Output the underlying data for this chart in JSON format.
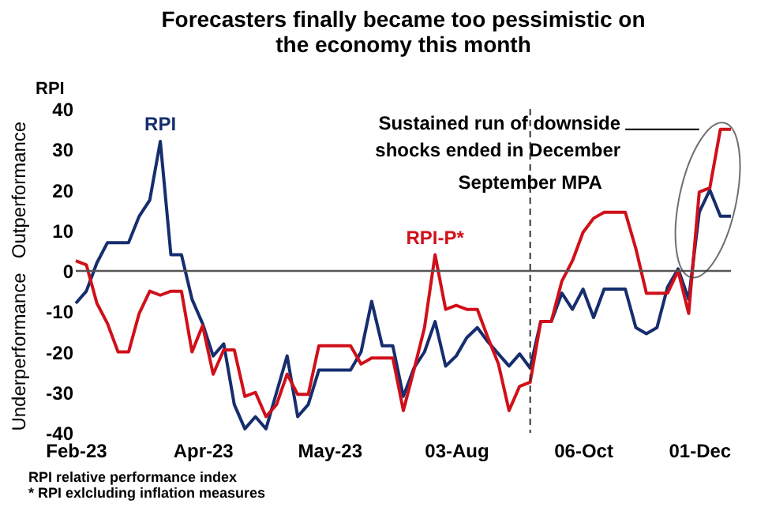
{
  "chart_data": {
    "type": "line",
    "title": "Forecasters finally became too pessimistic on the economy this month",
    "ylabel": "RPI",
    "categories": [
      "Feb-23",
      null,
      null,
      null,
      null,
      null,
      null,
      null,
      null,
      null,
      null,
      null,
      "Apr-23",
      null,
      null,
      null,
      null,
      null,
      null,
      null,
      null,
      null,
      null,
      null,
      "May-23",
      null,
      null,
      null,
      null,
      null,
      null,
      null,
      null,
      null,
      null,
      null,
      "03-Aug",
      null,
      null,
      null,
      null,
      null,
      null,
      null,
      null,
      null,
      null,
      null,
      "06-Oct",
      null,
      null,
      null,
      null,
      null,
      null,
      null,
      null,
      null,
      null,
      "01-Dec",
      null,
      null,
      null
    ],
    "ylim": [
      -40,
      40
    ],
    "yticks": [
      -40,
      -30,
      -20,
      -10,
      0,
      10,
      20,
      30,
      40
    ],
    "series": [
      {
        "name": "RPI",
        "color": "#162e6e",
        "values": [
          -8,
          -5,
          2,
          7,
          7,
          7,
          13.5,
          17.5,
          32,
          4,
          4,
          -7,
          -13,
          -21,
          -18,
          -33,
          -39,
          -36,
          -39,
          -30,
          -21,
          -36,
          -33,
          -24.5,
          -24.5,
          -24.5,
          -24.5,
          -20,
          -7.5,
          -18.5,
          -18.5,
          -31,
          -24,
          -20,
          -12.5,
          -23.5,
          -21,
          -16.5,
          -14,
          -17.5,
          -20.5,
          -23.5,
          -20.5,
          -24,
          -12.5,
          -12.5,
          -5.5,
          -9.5,
          -4.5,
          -11.5,
          -4.5,
          -4.5,
          -4.5,
          -14,
          -15.5,
          -14,
          -4,
          0.5,
          -7,
          14.5,
          20,
          13.5,
          13.5
        ]
      },
      {
        "name": "RPI-P*",
        "color": "#d0101a",
        "values": [
          2.5,
          1.5,
          -8,
          -13,
          -20,
          -20,
          -10.5,
          -5,
          -6,
          -5,
          -5,
          -20,
          -13.5,
          -25.5,
          -19.5,
          -19.5,
          -31,
          -30,
          -36,
          -33,
          -25.5,
          -30.5,
          -30.5,
          -18.5,
          -18.5,
          -18.5,
          -18.5,
          -23,
          -21.5,
          -21.5,
          -21.5,
          -34.5,
          -24.5,
          -14,
          4,
          -9.5,
          -8.5,
          -9.5,
          -9.5,
          -16.5,
          -23,
          -34.5,
          -28.5,
          -27.5,
          -12.5,
          -12.5,
          -2.5,
          2.5,
          9.5,
          13,
          14.5,
          14.5,
          14.5,
          5.5,
          -5.5,
          -5.5,
          -5.5,
          0,
          -10.5,
          19.5,
          20.5,
          35,
          35
        ]
      }
    ],
    "ref_lines": [
      {
        "axis": "y",
        "value": 0,
        "color": "#555555",
        "line_style": "solid"
      }
    ],
    "annotations": [
      "Outperformance",
      "Underperformance",
      "Sustained run of downside shocks ended in December",
      "September MPA",
      "RPI relative performance index",
      "* RPI exlcluding inflation measures"
    ],
    "grid": false,
    "legend": false
  }
}
